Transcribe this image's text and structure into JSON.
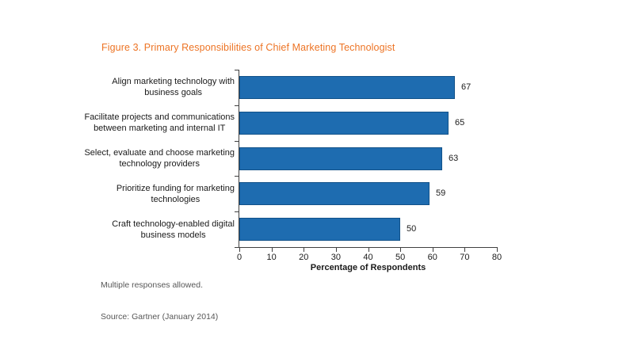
{
  "figure": {
    "title": "Figure 3. Primary Responsibilities of Chief Marketing Technologist",
    "footnote": "Multiple responses allowed.",
    "source": "Source: Gartner (January 2014)"
  },
  "chart_data": {
    "type": "bar",
    "orientation": "horizontal",
    "title": "Figure 3. Primary Responsibilities of Chief Marketing Technologist",
    "categories": [
      "Align marketing technology with\nbusiness goals",
      "Facilitate projects and communications\nbetween marketing and internal IT",
      "Select, evaluate and choose marketing\ntechnology providers",
      "Prioritize funding for marketing\ntechnologies",
      "Craft technology-enabled digital\nbusiness models"
    ],
    "values": [
      67,
      65,
      63,
      59,
      50
    ],
    "data_labels": [
      67,
      65,
      63,
      59,
      50
    ],
    "xlabel": "Percentage of Respondents",
    "xlim": [
      0,
      80
    ],
    "xticks": [
      0,
      10,
      20,
      30,
      40,
      50,
      60,
      70,
      80
    ],
    "grid": false,
    "legend": false
  },
  "colors": {
    "title_orange": "#ED7425",
    "bar_blue": "#1E6CB0",
    "bar_border": "#0A3E69",
    "axis": "#404040",
    "text": "#1A1A1A",
    "muted_text": "#575757"
  }
}
